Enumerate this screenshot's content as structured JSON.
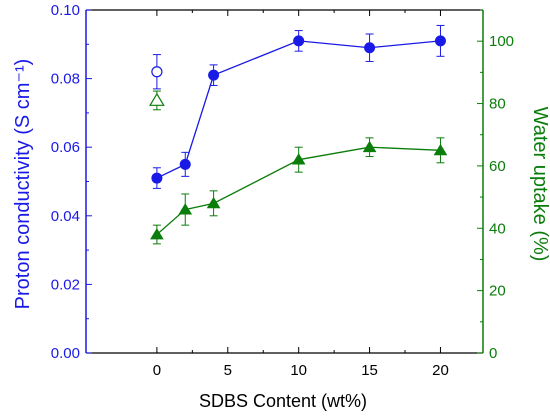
{
  "chart_data": {
    "type": "line",
    "x": [
      0,
      2,
      4,
      10,
      15,
      20
    ],
    "xlabel": "SDBS Content (wt%)",
    "xlim": [
      -5,
      23
    ],
    "xticks": [
      0,
      5,
      10,
      15,
      20
    ],
    "ylabel_left": "Proton conductivity (S cm⁻¹)",
    "ylim_left": [
      0,
      0.1
    ],
    "yticks_left": [
      "0.00",
      "0.02",
      "0.04",
      "0.06",
      "0.08",
      "0.10"
    ],
    "ylabel_right": "Water uptake (%)",
    "ylim_right": [
      0,
      110
    ],
    "yticks_right": [
      "0",
      "20",
      "40",
      "60",
      "80",
      "100"
    ],
    "grid": false,
    "series": [
      {
        "axis": "left",
        "marker": "circle",
        "color": "#1a1ae6",
        "values": [
          0.051,
          0.055,
          0.081,
          0.091,
          0.089,
          0.091
        ],
        "errors": [
          0.003,
          0.0035,
          0.003,
          0.003,
          0.004,
          0.0045
        ]
      },
      {
        "axis": "right",
        "marker": "triangle",
        "color": "#0a7d0a",
        "values": [
          38,
          46,
          48,
          62,
          66,
          65
        ],
        "errors": [
          3,
          5,
          4,
          4,
          3,
          4
        ]
      }
    ],
    "reference_points": [
      {
        "axis": "left",
        "marker": "open-circle",
        "color": "#1a1ae6",
        "x": 0,
        "value": 0.082,
        "error": 0.005
      },
      {
        "axis": "right",
        "marker": "open-triangle",
        "color": "#0a7d0a",
        "x": 0,
        "value": 81,
        "error": 3
      }
    ]
  }
}
